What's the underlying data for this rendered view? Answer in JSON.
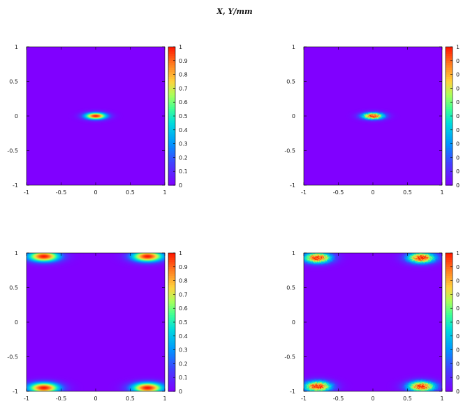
{
  "title": "X, Y/mm",
  "chart_data": [
    {
      "type": "heatmap",
      "panel": "top-left",
      "x_ticks": [
        "-1",
        "-0.5",
        "0",
        "0.5",
        "1"
      ],
      "y_ticks": [
        "1",
        "0.5",
        "0",
        "-0.5",
        "-1"
      ],
      "xlim": [
        -1,
        1
      ],
      "ylim": [
        -1,
        1
      ],
      "colorbar_ticks": [
        "1",
        "0.9",
        "0.8",
        "0.7",
        "0.6",
        "0.5",
        "0.4",
        "0.3",
        "0.2",
        "0.1",
        "0"
      ],
      "zlim": [
        0,
        1
      ],
      "colormap": "rainbow",
      "peaks": [
        {
          "x": 0.0,
          "y": 0.0,
          "sx": 0.11,
          "sy": 0.035
        }
      ],
      "noise": false
    },
    {
      "type": "heatmap",
      "panel": "top-right",
      "x_ticks": [
        "-1",
        "-0.5",
        "0",
        "0.5",
        "1"
      ],
      "y_ticks": [
        "1",
        "0.5",
        "0",
        "-0.5",
        "-1"
      ],
      "xlim": [
        -1,
        1
      ],
      "ylim": [
        -1,
        1
      ],
      "colorbar_ticks": [
        "1",
        "0",
        "0",
        "0",
        "0",
        "0",
        "0",
        "0",
        "0",
        "0",
        "0"
      ],
      "zlim": [
        0,
        1
      ],
      "colormap": "rainbow",
      "peaks": [
        {
          "x": 0.0,
          "y": 0.0,
          "sx": 0.11,
          "sy": 0.035
        }
      ],
      "noise": true
    },
    {
      "type": "heatmap",
      "panel": "bottom-left",
      "x_ticks": [
        "-1",
        "-0.5",
        "0",
        "0.5",
        "1"
      ],
      "y_ticks": [
        "1",
        "0.5",
        "0",
        "-0.5",
        "-1"
      ],
      "xlim": [
        -1,
        1
      ],
      "ylim": [
        -1,
        1
      ],
      "colorbar_ticks": [
        "1",
        "0.9",
        "0.8",
        "0.7",
        "0.6",
        "0.5",
        "0.4",
        "0.3",
        "0.2",
        "0.1",
        "0"
      ],
      "zlim": [
        0,
        1
      ],
      "colormap": "rainbow",
      "peaks": [
        {
          "x": -0.75,
          "y": 0.95,
          "sx": 0.16,
          "sy": 0.055
        },
        {
          "x": 0.75,
          "y": 0.95,
          "sx": 0.16,
          "sy": 0.055
        },
        {
          "x": -0.75,
          "y": -0.95,
          "sx": 0.16,
          "sy": 0.055
        },
        {
          "x": 0.75,
          "y": -0.95,
          "sx": 0.16,
          "sy": 0.055
        }
      ],
      "noise": false
    },
    {
      "type": "heatmap",
      "panel": "bottom-right",
      "x_ticks": [
        "-1",
        "-0.5",
        "0",
        "0.5",
        "1"
      ],
      "y_ticks": [
        "1",
        "0.5",
        "0",
        "-0.5",
        "-1"
      ],
      "xlim": [
        -1,
        1
      ],
      "ylim": [
        -1,
        1
      ],
      "colorbar_ticks": [
        "1",
        "0",
        "0",
        "0",
        "0",
        "0",
        "0",
        "0",
        "0",
        "0",
        "0"
      ],
      "zlim": [
        0,
        1
      ],
      "colormap": "rainbow",
      "peaks": [
        {
          "x": -0.8,
          "y": 0.93,
          "sx": 0.14,
          "sy": 0.055
        },
        {
          "x": 0.7,
          "y": 0.93,
          "sx": 0.14,
          "sy": 0.055
        },
        {
          "x": -0.8,
          "y": -0.93,
          "sx": 0.14,
          "sy": 0.055
        },
        {
          "x": 0.7,
          "y": -0.93,
          "sx": 0.14,
          "sy": 0.055
        }
      ],
      "noise": true
    }
  ]
}
